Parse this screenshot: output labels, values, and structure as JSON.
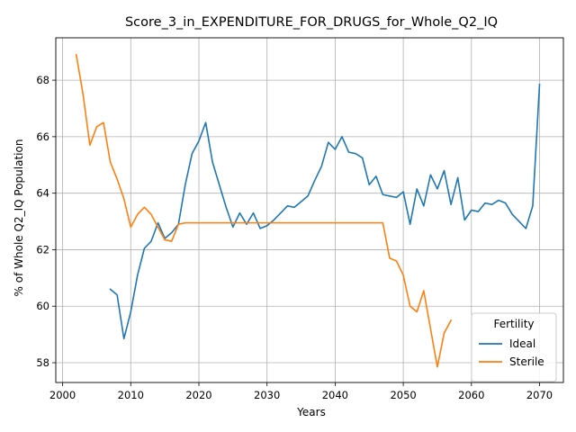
{
  "chart_data": {
    "type": "line",
    "title": "Score_3_in_EXPENDITURE_FOR_DRUGS_for_Whole_Q2_IQ",
    "xlabel": "Years",
    "ylabel": "% of Whole Q2_IQ Population",
    "xlim": [
      1999,
      2073.5
    ],
    "ylim": [
      57.3,
      69.5
    ],
    "xticks": [
      2000,
      2010,
      2020,
      2030,
      2040,
      2050,
      2060,
      2070
    ],
    "yticks": [
      58,
      60,
      62,
      64,
      66,
      68
    ],
    "grid": true,
    "legend": {
      "title": "Fertility",
      "placement": "bottom-right"
    },
    "series": [
      {
        "name": "Ideal",
        "color": "#1f77b4",
        "x": [
          2007,
          2008,
          2009,
          2010,
          2011,
          2012,
          2013,
          2014,
          2015,
          2016,
          2017,
          2018,
          2019,
          2020,
          2021,
          2022,
          2023,
          2024,
          2025,
          2026,
          2027,
          2028,
          2029,
          2030,
          2031,
          2032,
          2033,
          2034,
          2035,
          2036,
          2037,
          2038,
          2039,
          2040,
          2041,
          2042,
          2043,
          2044,
          2045,
          2046,
          2047,
          2048,
          2049,
          2050,
          2051,
          2052,
          2053,
          2054,
          2055,
          2056,
          2057,
          2058,
          2059,
          2060,
          2061,
          2062,
          2063,
          2064,
          2065,
          2066,
          2067,
          2068,
          2069,
          2070
        ],
        "y": [
          60.6,
          60.4,
          58.85,
          59.8,
          61.1,
          62.05,
          62.3,
          62.95,
          62.4,
          62.6,
          62.9,
          64.3,
          65.4,
          65.85,
          66.5,
          65.1,
          64.3,
          63.5,
          62.8,
          63.3,
          62.9,
          63.3,
          62.75,
          62.85,
          63.05,
          63.3,
          63.55,
          63.5,
          63.7,
          63.9,
          64.45,
          64.95,
          65.8,
          65.55,
          66.0,
          65.45,
          65.4,
          65.25,
          64.3,
          64.6,
          63.95,
          63.9,
          63.85,
          64.05,
          62.9,
          64.15,
          63.55,
          64.65,
          64.15,
          64.8,
          63.6,
          64.55,
          63.05,
          63.4,
          63.35,
          63.65,
          63.6,
          63.75,
          63.65,
          63.25,
          63.0,
          62.75,
          63.55,
          67.85
        ]
      },
      {
        "name": "Sterile",
        "color": "#ff7f0e",
        "x": [
          2002,
          2003,
          2004,
          2005,
          2006,
          2007,
          2008,
          2009,
          2010,
          2011,
          2012,
          2013,
          2014,
          2015,
          2016,
          2017,
          2018,
          2019,
          2020,
          2021,
          2022,
          2023,
          2024,
          2025,
          2026,
          2027,
          2028,
          2029,
          2030,
          2031,
          2032,
          2033,
          2034,
          2035,
          2036,
          2037,
          2038,
          2039,
          2040,
          2041,
          2042,
          2043,
          2044,
          2045,
          2046,
          2047,
          2048,
          2049,
          2050,
          2051,
          2052,
          2053,
          2054,
          2055,
          2056,
          2057
        ],
        "y": [
          68.9,
          67.5,
          65.7,
          66.35,
          66.5,
          65.1,
          64.5,
          63.8,
          62.8,
          63.25,
          63.5,
          63.25,
          62.8,
          62.35,
          62.3,
          62.9,
          62.95,
          62.95,
          62.95,
          62.95,
          62.95,
          62.95,
          62.95,
          62.95,
          62.95,
          62.95,
          62.95,
          62.95,
          62.95,
          62.95,
          62.95,
          62.95,
          62.95,
          62.95,
          62.95,
          62.95,
          62.95,
          62.95,
          62.95,
          62.95,
          62.95,
          62.95,
          62.95,
          62.95,
          62.95,
          62.95,
          61.7,
          61.6,
          61.1,
          60.0,
          59.8,
          60.55,
          59.2,
          57.85,
          59.05,
          59.5
        ]
      }
    ]
  }
}
